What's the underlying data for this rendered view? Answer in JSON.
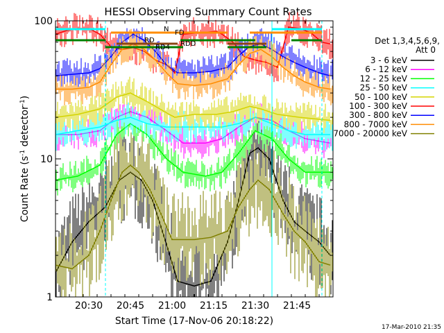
{
  "chart_data": {
    "type": "line",
    "title": "HESSI Observing Summary Count Rates",
    "xlabel": "Start Time (17-Nov-06 20:18:22)",
    "ylabel_main": "Count Rate (s",
    "ylabel_sup1": "-1",
    "ylabel_mid": " detector",
    "ylabel_sup2": "-1",
    "ylabel_end": ")",
    "x_unit": "minutes after 20:18:22",
    "x_range": [
      0,
      100
    ],
    "y_scale": "log",
    "y_range": [
      1,
      100
    ],
    "x_ticks": [
      {
        "t": 12,
        "label": "20:30"
      },
      {
        "t": 27,
        "label": "20:45"
      },
      {
        "t": 42,
        "label": "21:00"
      },
      {
        "t": 57,
        "label": "21:15"
      },
      {
        "t": 72,
        "label": "21:30"
      },
      {
        "t": 87,
        "label": "21:45"
      }
    ],
    "y_ticks": [
      {
        "v": 1,
        "label": "1"
      },
      {
        "v": 10,
        "label": "10"
      },
      {
        "v": 100,
        "label": "100"
      }
    ],
    "legend_title_1": "Det 1,3,4,5,6,9,",
    "legend_title_2": "Att 0",
    "legend_position": "right",
    "vertical_markers": {
      "solid_cyan": [
        0,
        78
      ],
      "dashed_cyan": [
        18,
        96
      ]
    },
    "flag_labels": [
      {
        "text": "N"
      },
      {
        "text": "FD"
      },
      {
        "text": "RD"
      },
      {
        "text": "RDD"
      },
      {
        "text": "RD4"
      }
    ],
    "series": [
      {
        "name": "3 - 6 keV",
        "color": "#000000",
        "points": [
          [
            0,
            1.5
          ],
          [
            6,
            2.5
          ],
          [
            12,
            3.5
          ],
          [
            18,
            4.5
          ],
          [
            23,
            7
          ],
          [
            27,
            8
          ],
          [
            31,
            7
          ],
          [
            35,
            5
          ],
          [
            40,
            2.4
          ],
          [
            44,
            1.3
          ],
          [
            50,
            1.2
          ],
          [
            56,
            1.3
          ],
          [
            62,
            2.5
          ],
          [
            66,
            5
          ],
          [
            70,
            11
          ],
          [
            73,
            12
          ],
          [
            77,
            10
          ],
          [
            82,
            5
          ],
          [
            86,
            3.5
          ],
          [
            90,
            3
          ],
          [
            95,
            2.5
          ],
          [
            99,
            2
          ]
        ]
      },
      {
        "name": "6 - 12 keV",
        "color": "#ff00ff",
        "points": [
          [
            0,
            15
          ],
          [
            8,
            15
          ],
          [
            16,
            16
          ],
          [
            22,
            20
          ],
          [
            27,
            22
          ],
          [
            33,
            20
          ],
          [
            40,
            16
          ],
          [
            46,
            13
          ],
          [
            54,
            13
          ],
          [
            60,
            14
          ],
          [
            66,
            17
          ],
          [
            72,
            20
          ],
          [
            78,
            19
          ],
          [
            84,
            16
          ],
          [
            90,
            14
          ],
          [
            99,
            13
          ]
        ]
      },
      {
        "name": "12 - 25 keV",
        "color": "#00ff00",
        "points": [
          [
            0,
            7
          ],
          [
            8,
            7.5
          ],
          [
            16,
            9
          ],
          [
            22,
            15
          ],
          [
            27,
            18
          ],
          [
            33,
            15
          ],
          [
            40,
            10
          ],
          [
            46,
            8
          ],
          [
            54,
            7.5
          ],
          [
            60,
            8
          ],
          [
            66,
            11
          ],
          [
            72,
            16
          ],
          [
            78,
            14
          ],
          [
            84,
            10
          ],
          [
            90,
            8
          ],
          [
            99,
            8
          ]
        ]
      },
      {
        "name": "25 - 50 keV",
        "color": "#00ffff",
        "points": [
          [
            0,
            15
          ],
          [
            8,
            16
          ],
          [
            16,
            17
          ],
          [
            22,
            19
          ],
          [
            27,
            20
          ],
          [
            33,
            18
          ],
          [
            40,
            17
          ],
          [
            46,
            17
          ],
          [
            54,
            17
          ],
          [
            60,
            17
          ],
          [
            66,
            18
          ],
          [
            72,
            20
          ],
          [
            78,
            18
          ],
          [
            84,
            16
          ],
          [
            90,
            15
          ],
          [
            99,
            15
          ]
        ]
      },
      {
        "name": "50 - 100 keV",
        "color": "#d4d400",
        "points": [
          [
            0,
            20
          ],
          [
            8,
            21
          ],
          [
            16,
            23
          ],
          [
            22,
            28
          ],
          [
            27,
            30
          ],
          [
            33,
            26
          ],
          [
            41,
            21
          ],
          [
            43,
            20
          ],
          [
            50,
            21
          ],
          [
            58,
            21
          ],
          [
            64,
            22
          ],
          [
            70,
            24
          ],
          [
            74,
            23
          ],
          [
            80,
            21
          ],
          [
            88,
            20
          ],
          [
            99,
            19
          ]
        ]
      },
      {
        "name": "100 - 300 keV",
        "color": "#ff0000",
        "points": [
          [
            0,
            80
          ],
          [
            4,
            85
          ],
          [
            8,
            88
          ],
          [
            12,
            88
          ],
          [
            16,
            80
          ],
          [
            20,
            65
          ],
          [
            24,
            62
          ],
          [
            28,
            64
          ],
          [
            32,
            60
          ],
          [
            36,
            52
          ],
          [
            40,
            48
          ],
          [
            43,
            42
          ],
          [
            46,
            80
          ],
          [
            52,
            82
          ],
          [
            58,
            84
          ],
          [
            60,
            80
          ],
          [
            64,
            70
          ],
          [
            68,
            55
          ],
          [
            72,
            52
          ],
          [
            76,
            50
          ],
          [
            80,
            46
          ],
          [
            84,
            90
          ],
          [
            88,
            88
          ],
          [
            92,
            82
          ],
          [
            96,
            70
          ],
          [
            99,
            68
          ]
        ]
      },
      {
        "name": "300 - 800 keV",
        "color": "#0000ff",
        "points": [
          [
            0,
            40
          ],
          [
            6,
            41
          ],
          [
            12,
            42
          ],
          [
            16,
            45
          ],
          [
            20,
            55
          ],
          [
            24,
            70
          ],
          [
            28,
            80
          ],
          [
            32,
            72
          ],
          [
            36,
            60
          ],
          [
            40,
            48
          ],
          [
            44,
            42
          ],
          [
            50,
            42
          ],
          [
            56,
            43
          ],
          [
            62,
            46
          ],
          [
            66,
            56
          ],
          [
            70,
            65
          ],
          [
            74,
            68
          ],
          [
            78,
            62
          ],
          [
            82,
            55
          ],
          [
            86,
            50
          ],
          [
            90,
            46
          ],
          [
            95,
            42
          ],
          [
            99,
            40
          ]
        ]
      },
      {
        "name": "800 - 7000 keV",
        "color": "#ff8c00",
        "points": [
          [
            0,
            32
          ],
          [
            6,
            32
          ],
          [
            12,
            33
          ],
          [
            16,
            36
          ],
          [
            20,
            48
          ],
          [
            24,
            62
          ],
          [
            28,
            68
          ],
          [
            32,
            62
          ],
          [
            36,
            52
          ],
          [
            40,
            42
          ],
          [
            44,
            35
          ],
          [
            50,
            34
          ],
          [
            56,
            35
          ],
          [
            62,
            38
          ],
          [
            66,
            48
          ],
          [
            70,
            58
          ],
          [
            74,
            62
          ],
          [
            78,
            55
          ],
          [
            82,
            46
          ],
          [
            86,
            40
          ],
          [
            90,
            36
          ],
          [
            95,
            33
          ],
          [
            99,
            32
          ]
        ]
      },
      {
        "name": "7000 - 20000 keV",
        "color": "#808000",
        "points": [
          [
            0,
            1.7
          ],
          [
            6,
            1.6
          ],
          [
            12,
            2
          ],
          [
            16,
            3
          ],
          [
            20,
            5
          ],
          [
            24,
            8
          ],
          [
            27,
            9
          ],
          [
            30,
            8
          ],
          [
            34,
            6
          ],
          [
            38,
            4
          ],
          [
            42,
            2.6
          ],
          [
            46,
            2.6
          ],
          [
            50,
            2.6
          ],
          [
            56,
            2.7
          ],
          [
            62,
            3
          ],
          [
            66,
            4.5
          ],
          [
            70,
            6
          ],
          [
            73,
            7
          ],
          [
            77,
            6
          ],
          [
            82,
            4
          ],
          [
            86,
            3
          ],
          [
            90,
            2.5
          ],
          [
            95,
            1.8
          ],
          [
            99,
            1.7
          ]
        ]
      }
    ]
  },
  "footer_timestamp": "17-Mar-2010 21:35"
}
